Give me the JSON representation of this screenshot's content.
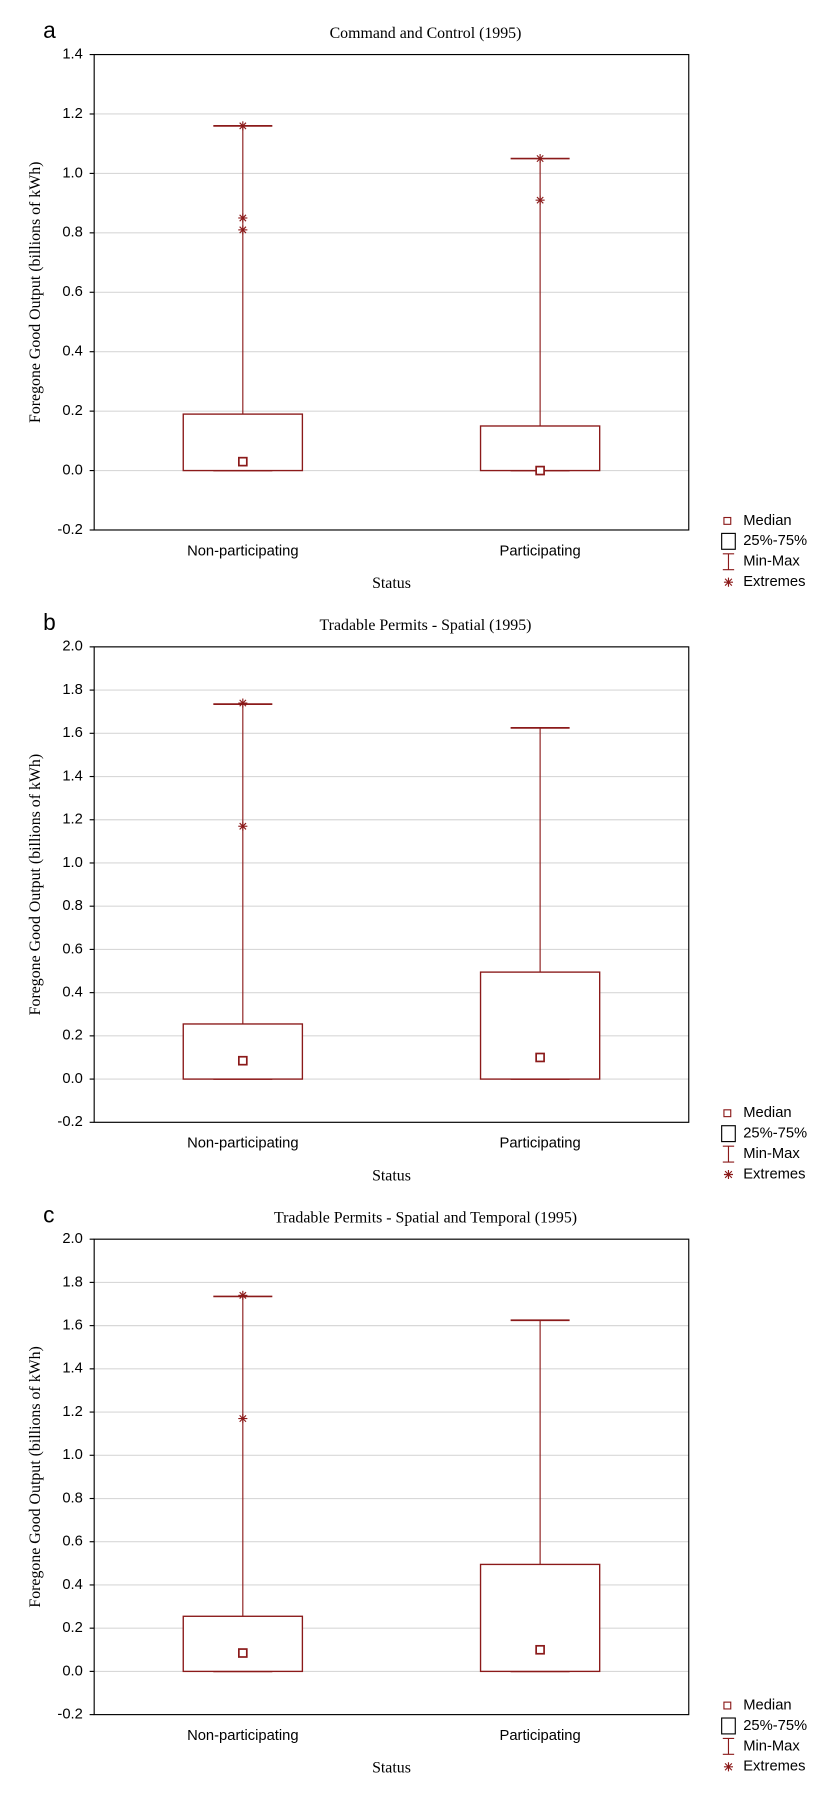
{
  "chart_data": [
    {
      "type": "box",
      "panel_label": "a",
      "title": "Command and Control (1995)",
      "x_label": "Status",
      "y_label": "Foregone Good Output (billions of kWh)",
      "categories": [
        "Non-participating",
        "Participating"
      ],
      "boxes": [
        {
          "min": 0,
          "q1": 0,
          "median": 0.03,
          "q3": 0.19,
          "max": 1.16,
          "extremes": [
            0.81,
            0.85,
            1.16
          ]
        },
        {
          "min": 0,
          "q1": 0,
          "median": 0,
          "q3": 0.15,
          "max": 1.05,
          "extremes": [
            0.91,
            1.05
          ]
        }
      ],
      "color": "#8b1a1a",
      "ylim": [
        -0.2,
        1.4
      ],
      "yticks": [
        -0.2,
        {
          "value": 0,
          "label": "0.0"
        },
        0.2,
        0.4,
        0.6,
        0.8,
        {
          "value": 1,
          "label": "1.0"
        },
        1.2,
        1.4
      ],
      "grid": true,
      "legend": [
        "Median",
        "25%-75%",
        "Min-Max",
        "Extremes"
      ]
    },
    {
      "type": "box",
      "panel_label": "b",
      "title": "Tradable Permits - Spatial (1995)",
      "x_label": "Status",
      "y_label": "Foregone Good Output (billions of kWh)",
      "categories": [
        "Non-participating",
        "Participating"
      ],
      "boxes": [
        {
          "min": 0,
          "q1": 0,
          "median": 0.085,
          "q3": 0.255,
          "max": 1.735,
          "extremes": [
            1.17,
            1.74
          ]
        },
        {
          "min": 0,
          "q1": 0,
          "median": 0.1,
          "q3": 0.495,
          "max": 1.625,
          "extremes": []
        }
      ],
      "color": "#8b1a1a",
      "ylim": [
        -0.2,
        2
      ],
      "yticks": [
        -0.2,
        {
          "value": 0,
          "label": "0.0"
        },
        0.2,
        0.4,
        0.6,
        0.8,
        {
          "value": 1,
          "label": "1.0"
        },
        1.2,
        1.4,
        1.6,
        1.8,
        {
          "value": 2,
          "label": "2.0"
        }
      ],
      "grid": true,
      "legend": [
        "Median",
        "25%-75%",
        "Min-Max",
        "Extremes"
      ]
    },
    {
      "type": "box",
      "panel_label": "c",
      "title": "Tradable Permits - Spatial and Temporal (1995)",
      "x_label": "Status",
      "y_label": "Foregone Good Output (billions of kWh)",
      "categories": [
        "Non-participating",
        "Participating"
      ],
      "boxes": [
        {
          "min": 0,
          "q1": 0,
          "median": 0.085,
          "q3": 0.255,
          "max": 1.735,
          "extremes": [
            1.17,
            1.74
          ]
        },
        {
          "min": 0,
          "q1": 0,
          "median": 0.1,
          "q3": 0.495,
          "max": 1.625,
          "extremes": []
        }
      ],
      "color": "#8b1a1a",
      "ylim": [
        -0.2,
        2
      ],
      "yticks": [
        -0.2,
        {
          "value": 0,
          "label": "0.0"
        },
        0.2,
        0.4,
        0.6,
        0.8,
        {
          "value": 1,
          "label": "1.0"
        },
        1.2,
        1.4,
        1.6,
        1.8,
        {
          "value": 2,
          "label": "2.0"
        }
      ],
      "grid": true,
      "legend": [
        "Median",
        "25%-75%",
        "Min-Max",
        "Extremes"
      ]
    }
  ]
}
